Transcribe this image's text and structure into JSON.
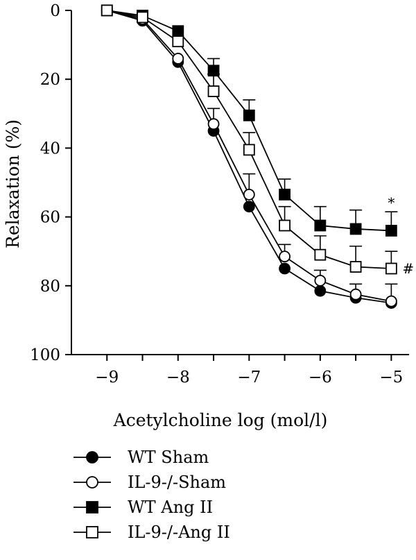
{
  "chart_data": {
    "type": "line",
    "xlabel": "Acetylcholine log (mol/l)",
    "ylabel": "Relaxation (%)",
    "x": [
      -9,
      -8.5,
      -8,
      -7.5,
      -7,
      -6.5,
      -6,
      -5.5,
      -5
    ],
    "xlim": [
      -9.5,
      -4.75
    ],
    "ylim": [
      0,
      100
    ],
    "y_inverted": true,
    "x_ticks": [
      -9,
      -8,
      -7,
      -6,
      -5
    ],
    "x_tick_labels": [
      "−9",
      "−8",
      "−7",
      "−6",
      "−5"
    ],
    "y_ticks": [
      0,
      20,
      40,
      60,
      80,
      100
    ],
    "y_tick_labels": [
      "0",
      "20",
      "40",
      "60",
      "80",
      "100"
    ],
    "legend_position": "bottom-left",
    "grid": false,
    "series": [
      {
        "name": "WT Sham",
        "marker": "circle",
        "fill": "#000000",
        "values": [
          0,
          3,
          15,
          35,
          57,
          75,
          81.5,
          83.5,
          85
        ],
        "error": [
          0,
          0,
          0,
          0,
          0,
          0,
          0,
          0,
          0
        ]
      },
      {
        "name": "IL-9-/-Sham",
        "marker": "circle",
        "fill": "#ffffff",
        "values": [
          0,
          2.5,
          14,
          33,
          53.5,
          71.5,
          78.5,
          82.5,
          84.5
        ],
        "error": [
          0,
          0,
          0,
          4.5,
          6,
          3.5,
          3,
          3,
          5
        ]
      },
      {
        "name": "WT Ang II",
        "marker": "square",
        "fill": "#000000",
        "values": [
          0,
          1.5,
          6,
          17.5,
          30.5,
          53.5,
          62.5,
          63.5,
          64
        ],
        "error": [
          0,
          0,
          0,
          3.5,
          4.5,
          4.5,
          5.5,
          5.5,
          5.5
        ]
      },
      {
        "name": "IL-9-/-Ang II",
        "marker": "square",
        "fill": "#ffffff",
        "values": [
          0,
          2,
          9,
          23.5,
          40.5,
          62.5,
          71,
          74.5,
          75
        ],
        "error": [
          0,
          0,
          0,
          5,
          5,
          5.5,
          5.5,
          6,
          5
        ]
      }
    ],
    "annotations": [
      {
        "text": "*",
        "x": -5,
        "near_series": "WT Ang II"
      },
      {
        "text": "#",
        "x": -5,
        "near_series": "IL-9-/-Ang II"
      }
    ]
  }
}
